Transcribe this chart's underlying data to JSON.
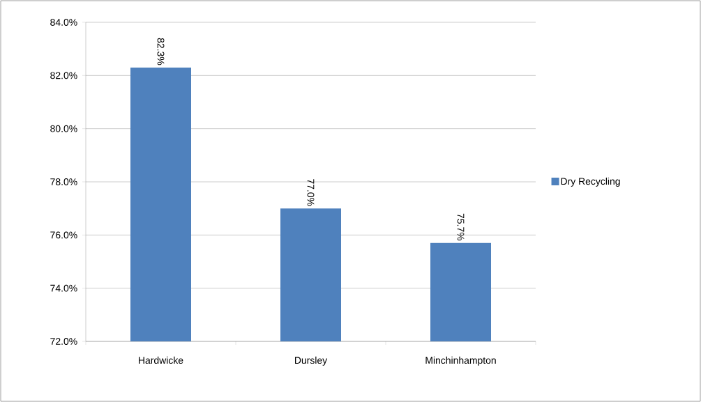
{
  "chart_data": {
    "type": "bar",
    "categories": [
      "Hardwicke",
      "Dursley",
      "Minchinhampton"
    ],
    "series": [
      {
        "name": "Dry Recycling",
        "color": "#4f81bd",
        "values": [
          82.3,
          77.0,
          75.7
        ],
        "value_labels": [
          "82.3%",
          "77.0%",
          "75.7%"
        ]
      }
    ],
    "ylim": [
      72,
      84
    ],
    "yticks": [
      {
        "value": 72,
        "label": "72.0%"
      },
      {
        "value": 74,
        "label": "74.0%"
      },
      {
        "value": 76,
        "label": "76.0%"
      },
      {
        "value": 78,
        "label": "78.0%"
      },
      {
        "value": 80,
        "label": "80.0%"
      },
      {
        "value": 82,
        "label": "82.0%"
      },
      {
        "value": 84,
        "label": "84.0%"
      }
    ],
    "grid": "y",
    "legend": "right"
  }
}
